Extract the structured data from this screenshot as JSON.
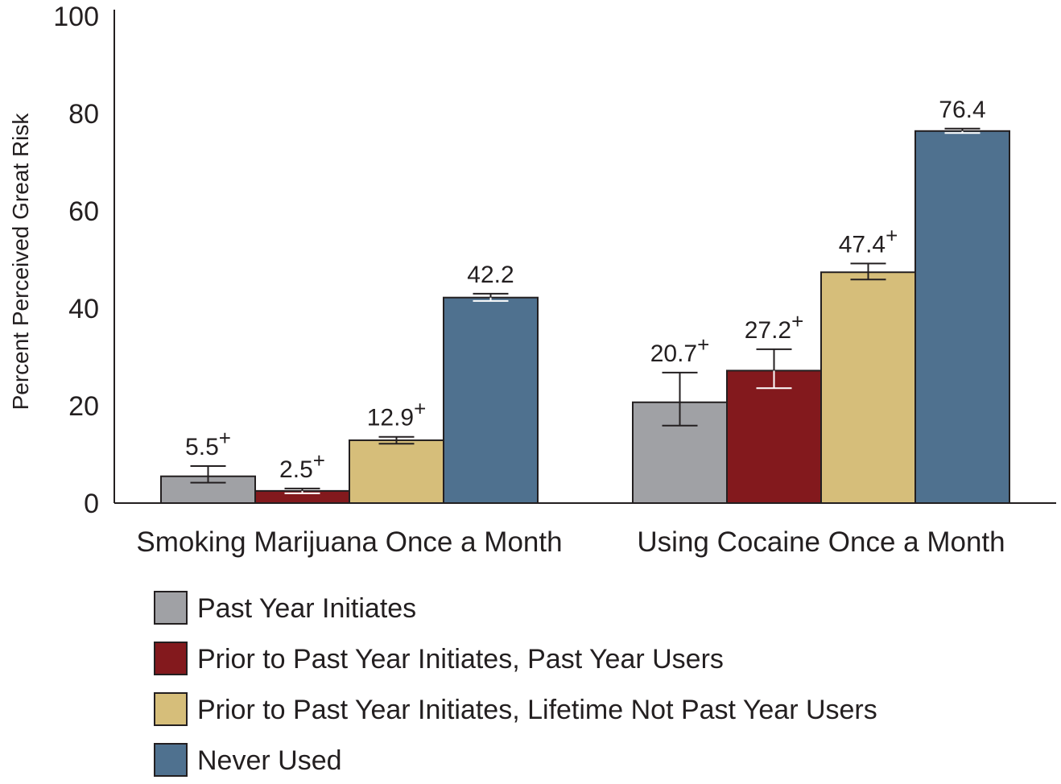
{
  "chart_data": {
    "type": "bar",
    "ylabel": "Percent Perceived Great Risk",
    "xlabel": "",
    "ylim": [
      0,
      100
    ],
    "yticks": [
      "0",
      "20",
      "40",
      "60",
      "80",
      "100"
    ],
    "categories": [
      "Smoking Marijuana Once a Month",
      "Using Cocaine Once a Month"
    ],
    "series": [
      {
        "name": "Past Year Initiates",
        "color": "#a0a1a5",
        "values": [
          5.5,
          20.7
        ],
        "labels": [
          "5.5",
          "20.7"
        ],
        "significant": [
          true,
          true
        ],
        "error_low": [
          4.2,
          15.9
        ],
        "error_high": [
          7.6,
          26.8
        ]
      },
      {
        "name": "Prior to Past Year Initiates, Past Year Users",
        "color": "#83191d",
        "values": [
          2.5,
          27.2
        ],
        "labels": [
          "2.5",
          "27.2"
        ],
        "significant": [
          true,
          true
        ],
        "error_low": [
          2.0,
          23.6
        ],
        "error_high": [
          3.0,
          31.6
        ]
      },
      {
        "name": "Prior to Past Year Initiates, Lifetime Not Past Year Users",
        "color": "#d6be7a",
        "values": [
          12.9,
          47.4
        ],
        "labels": [
          "12.9",
          "47.4"
        ],
        "significant": [
          true,
          true
        ],
        "error_low": [
          12.2,
          45.9
        ],
        "error_high": [
          13.6,
          49.2
        ]
      },
      {
        "name": "Never Used",
        "color": "#4f718f",
        "values": [
          42.2,
          76.4
        ],
        "labels": [
          "42.2",
          "76.4"
        ],
        "significant": [
          false,
          false
        ],
        "error_low": [
          41.5,
          76.0
        ],
        "error_high": [
          43.0,
          76.9
        ]
      }
    ],
    "significance_marker": "+",
    "grid": false,
    "legend_position": "bottom-left"
  }
}
